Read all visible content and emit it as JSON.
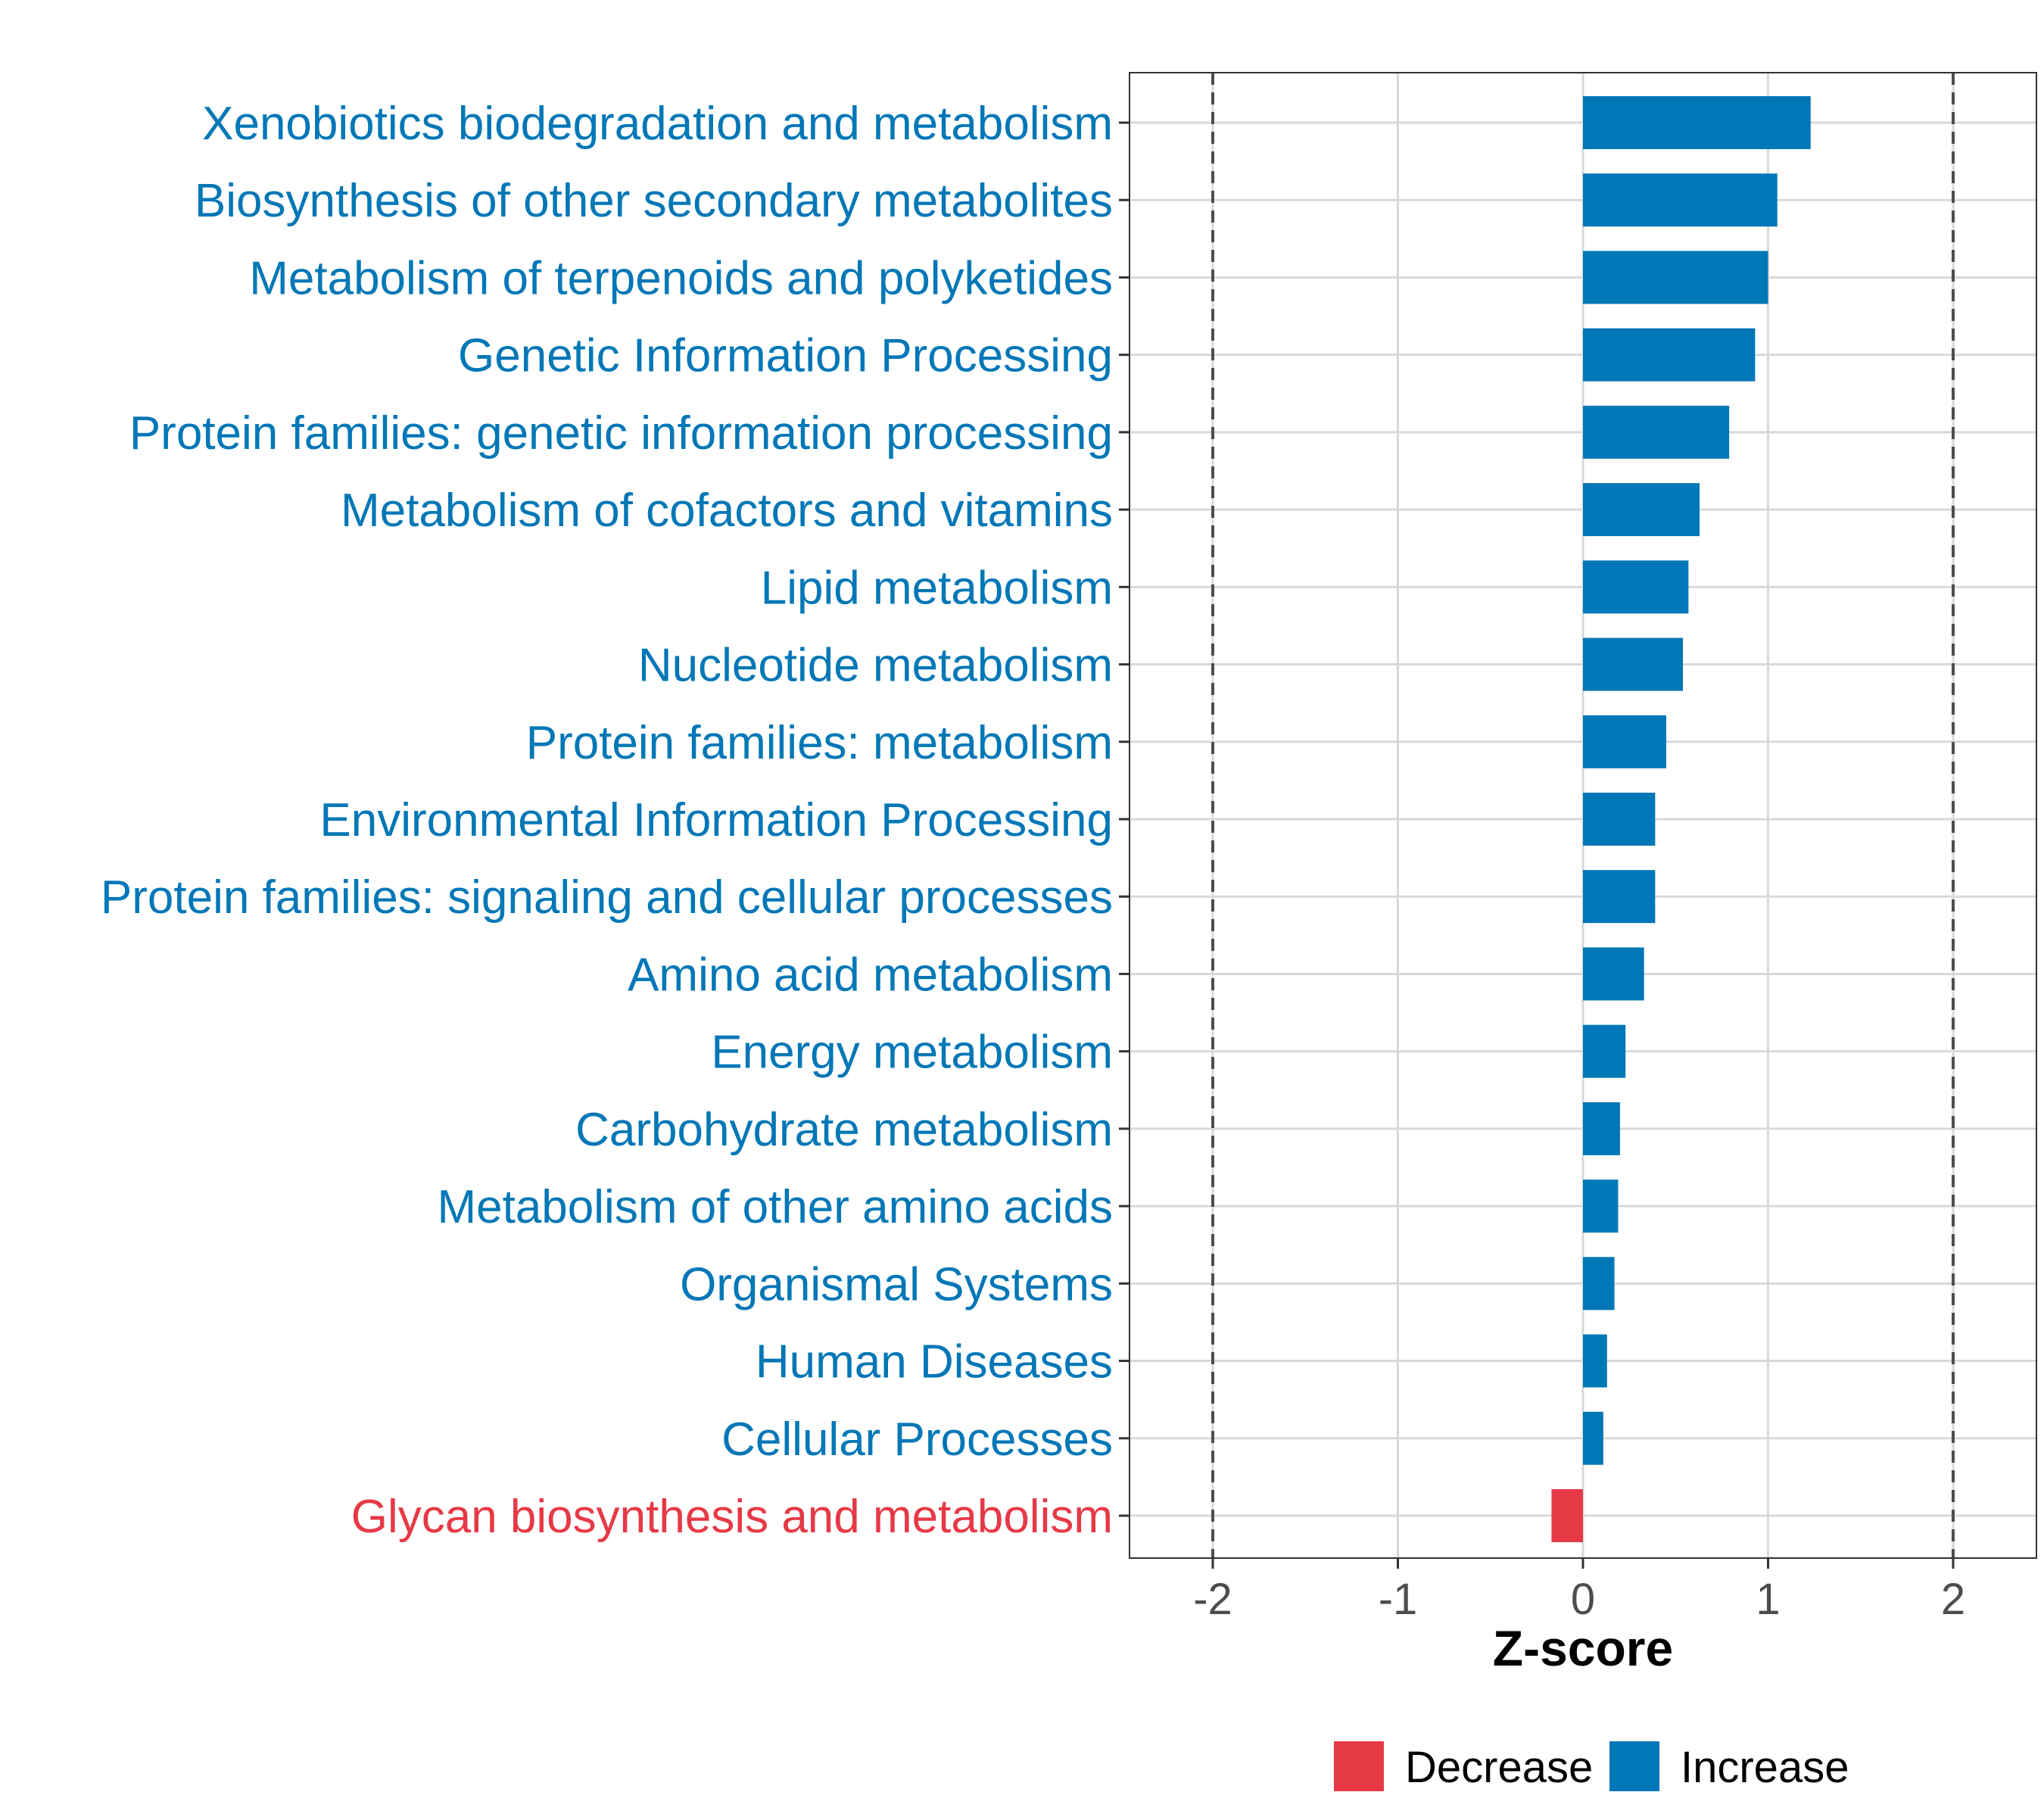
{
  "colors": {
    "increase": "#0077b6",
    "decrease": "#e63946",
    "grid": "#d9d9d9",
    "reference_line": "#4d4d4d",
    "panel_border": "#333333",
    "tick_text": "#4d4d4d"
  },
  "chart_data": {
    "type": "bar",
    "orientation": "horizontal",
    "title": "",
    "xlabel": "Z-score",
    "ylabel": "",
    "xlim": [
      -2.45,
      2.45
    ],
    "xticks": [
      -2,
      -1,
      0,
      1,
      2
    ],
    "xtick_labels": [
      "-2",
      "-1",
      "0",
      "1",
      "2"
    ],
    "reference_lines": [
      -2,
      2
    ],
    "grid": true,
    "legend_position": "bottom",
    "categories": [
      "Xenobiotics biodegradation and metabolism",
      "Biosynthesis of other secondary metabolites",
      "Metabolism of terpenoids and polyketides",
      "Genetic Information Processing",
      "Protein families: genetic information processing",
      "Metabolism of cofactors and vitamins",
      "Lipid metabolism",
      "Nucleotide metabolism",
      "Protein families: metabolism",
      "Environmental Information Processing",
      "Protein families: signaling and cellular processes",
      "Amino acid metabolism",
      "Energy metabolism",
      "Carbohydrate metabolism",
      "Metabolism of other amino acids",
      "Organismal Systems",
      "Human Diseases",
      "Cellular Processes",
      "Glycan biosynthesis and metabolism"
    ],
    "values": [
      1.23,
      1.05,
      1.0,
      0.93,
      0.79,
      0.63,
      0.57,
      0.54,
      0.45,
      0.39,
      0.39,
      0.33,
      0.23,
      0.2,
      0.19,
      0.17,
      0.13,
      0.11,
      -0.17
    ],
    "groups": [
      "Increase",
      "Increase",
      "Increase",
      "Increase",
      "Increase",
      "Increase",
      "Increase",
      "Increase",
      "Increase",
      "Increase",
      "Increase",
      "Increase",
      "Increase",
      "Increase",
      "Increase",
      "Increase",
      "Increase",
      "Increase",
      "Decrease"
    ],
    "legend": [
      {
        "label": "Decrease",
        "color": "#e63946"
      },
      {
        "label": "Increase",
        "color": "#0077b6"
      }
    ]
  }
}
